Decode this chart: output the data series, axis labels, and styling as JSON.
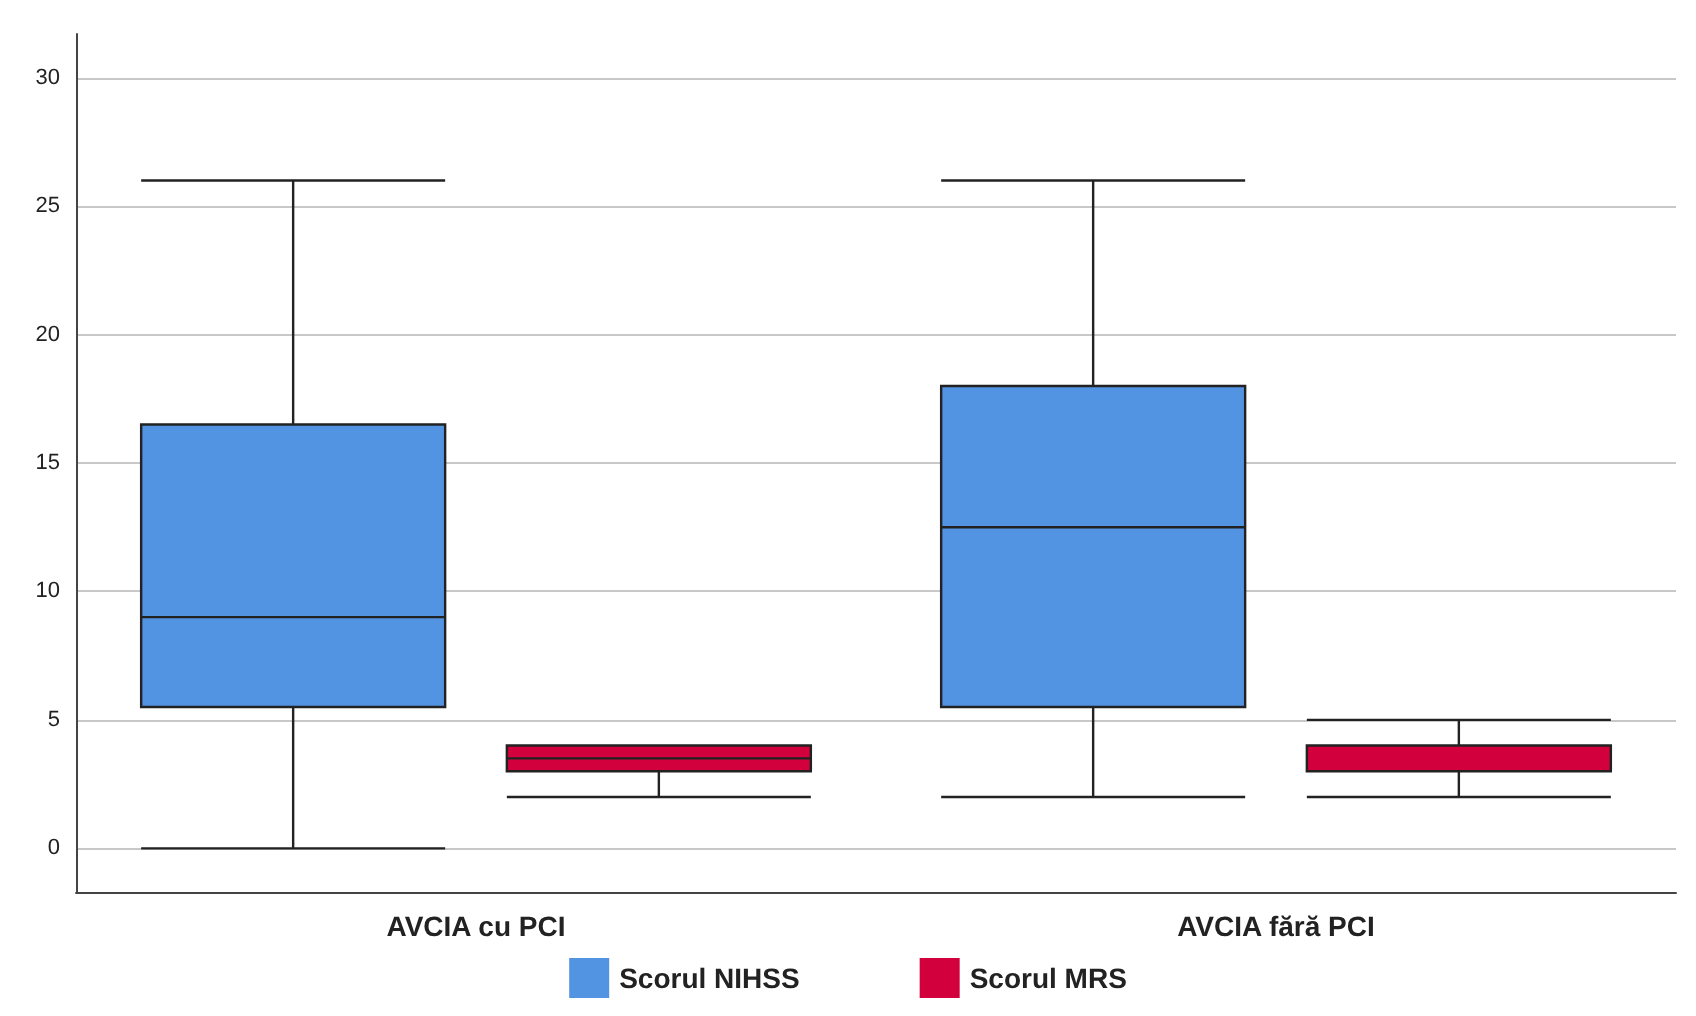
{
  "chart_data": {
    "type": "box",
    "categories": [
      "AVCIA cu PCI",
      "AVCIA fără PCI"
    ],
    "series": [
      {
        "name": "Scorul NIHSS",
        "color": "#5294e2",
        "boxes": [
          {
            "low": 0,
            "q1": 5.5,
            "median": 9,
            "q3": 16.5,
            "high": 26
          },
          {
            "low": 2,
            "q1": 5.5,
            "median": 12.5,
            "q3": 18,
            "high": 26
          }
        ]
      },
      {
        "name": "Scorul MRS",
        "color": "#d2003c",
        "boxes": [
          {
            "low": 2,
            "q1": 3,
            "median": 3.5,
            "q3": 4,
            "high": 4
          },
          {
            "low": 2,
            "q1": 3,
            "median": 4,
            "q3": 4,
            "high": 5
          }
        ]
      }
    ],
    "ylim": [
      -1.7,
      31.7
    ],
    "yticks": [
      0,
      5,
      10,
      15,
      20,
      25,
      30
    ],
    "grid": "y",
    "legend": "bottom"
  }
}
